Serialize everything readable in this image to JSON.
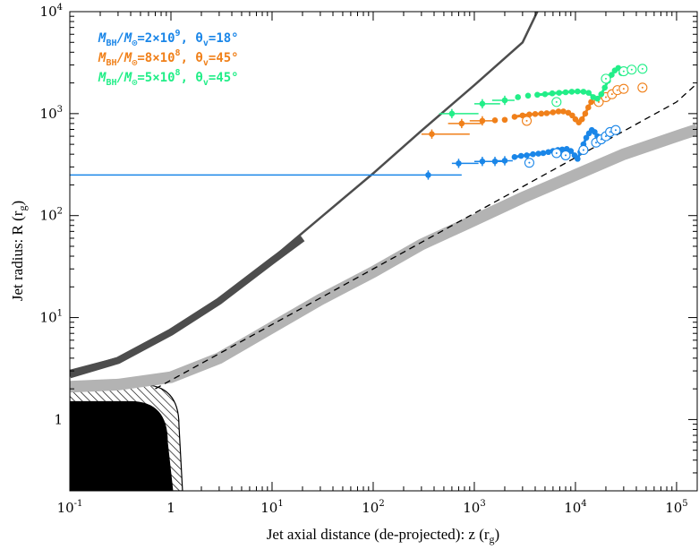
{
  "chart_data": {
    "type": "scatter",
    "x_scale": "log",
    "y_scale": "log",
    "xlim": [
      0.1,
      160000
    ],
    "ylim": [
      0.2,
      10000
    ],
    "x_ticks": [
      {
        "value": 0.1,
        "base": "10",
        "exp": "-1"
      },
      {
        "value": 1,
        "base": "1",
        "exp": ""
      },
      {
        "value": 10,
        "base": "10",
        "exp": "1"
      },
      {
        "value": 100,
        "base": "10",
        "exp": "2"
      },
      {
        "value": 1000,
        "base": "10",
        "exp": "3"
      },
      {
        "value": 10000,
        "base": "10",
        "exp": "4"
      },
      {
        "value": 100000,
        "base": "10",
        "exp": "5"
      }
    ],
    "y_ticks": [
      {
        "value": 1,
        "base": "1",
        "exp": ""
      },
      {
        "value": 10,
        "base": "10",
        "exp": "1"
      },
      {
        "value": 100,
        "base": "10",
        "exp": "2"
      },
      {
        "value": 1000,
        "base": "10",
        "exp": "3"
      },
      {
        "value": 10000,
        "base": "10",
        "exp": "4"
      }
    ],
    "xlabel": "Jet axial distance (de-projected): z (r",
    "xlabel_sub": "g",
    "xlabel_end": ")",
    "ylabel": "Jet radius: R (r",
    "ylabel_sub": "g",
    "ylabel_end": ")",
    "colors": {
      "blue": "#1a86e8",
      "orange": "#f0801a",
      "green": "#22ee88",
      "dark_curve": "#4d4d4d",
      "light_curve": "#b3b3b3"
    },
    "legend": [
      {
        "mass_lhs": "M",
        "mass_sub": "BH",
        "mass_sep": "/M",
        "mass_sun": "⊙",
        "mass_val": "=2×10",
        "mass_exp": "9",
        "angle_lhs": ", θ",
        "angle_sub": "v",
        "angle_val": "=18°",
        "color": "#1a86e8"
      },
      {
        "mass_lhs": "M",
        "mass_sub": "BH",
        "mass_sep": "/M",
        "mass_sun": "⊙",
        "mass_val": "=8×10",
        "mass_exp": "8",
        "angle_lhs": ", θ",
        "angle_sub": "v",
        "angle_val": "=45°",
        "color": "#f0801a"
      },
      {
        "mass_lhs": "M",
        "mass_sub": "BH",
        "mass_sep": "/M",
        "mass_sun": "⊙",
        "mass_val": "=5×10",
        "mass_exp": "8",
        "angle_lhs": ", θ",
        "angle_sub": "v",
        "angle_val": "=45°",
        "color": "#22ee88"
      }
    ],
    "series": [
      {
        "color": "#1a86e8",
        "points": [
          {
            "x": 350,
            "y": 250,
            "xerr": [
              0,
              750
            ]
          },
          {
            "x": 700,
            "y": 325,
            "xerr": [
              600,
              1100
            ]
          },
          {
            "x": 1200,
            "y": 340,
            "xerr": [
              1000,
              1800
            ]
          },
          {
            "x": 1600,
            "y": 340,
            "xerr": [
              1300,
              2000
            ]
          },
          {
            "x": 2000,
            "y": 345,
            "xerr": [
              1700,
              2400
            ]
          },
          {
            "x": 2500,
            "y": 375
          },
          {
            "x": 2900,
            "y": 385
          },
          {
            "x": 3300,
            "y": 390
          },
          {
            "x": 3800,
            "y": 400
          },
          {
            "x": 4300,
            "y": 405
          },
          {
            "x": 4800,
            "y": 410
          },
          {
            "x": 5400,
            "y": 420
          },
          {
            "x": 6000,
            "y": 430
          },
          {
            "x": 6700,
            "y": 440
          },
          {
            "x": 7400,
            "y": 445
          },
          {
            "x": 8200,
            "y": 450
          },
          {
            "x": 9000,
            "y": 430
          },
          {
            "x": 9800,
            "y": 390
          },
          {
            "x": 10500,
            "y": 360
          },
          {
            "x": 11200,
            "y": 420
          },
          {
            "x": 12000,
            "y": 500
          },
          {
            "x": 12800,
            "y": 580
          },
          {
            "x": 13600,
            "y": 640
          },
          {
            "x": 14500,
            "y": 690
          },
          {
            "x": 15500,
            "y": 660
          },
          {
            "x": 16500,
            "y": 600
          }
        ],
        "open_points": [
          {
            "x": 3500,
            "y": 330
          },
          {
            "x": 6500,
            "y": 410
          },
          {
            "x": 8000,
            "y": 390
          },
          {
            "x": 12000,
            "y": 440
          },
          {
            "x": 16000,
            "y": 520
          },
          {
            "x": 18000,
            "y": 560
          },
          {
            "x": 20000,
            "y": 600
          },
          {
            "x": 22000,
            "y": 660
          },
          {
            "x": 25000,
            "y": 690
          }
        ]
      },
      {
        "color": "#f0801a",
        "points": [
          {
            "x": 380,
            "y": 630,
            "xerr": [
              300,
              900
            ]
          },
          {
            "x": 750,
            "y": 800,
            "xerr": [
              550,
              1200
            ]
          },
          {
            "x": 1200,
            "y": 850,
            "xerr": [
              900,
              1700
            ]
          },
          {
            "x": 1600,
            "y": 860
          },
          {
            "x": 2000,
            "y": 870
          },
          {
            "x": 2500,
            "y": 930
          },
          {
            "x": 3000,
            "y": 960
          },
          {
            "x": 3500,
            "y": 980
          },
          {
            "x": 4000,
            "y": 990
          },
          {
            "x": 4600,
            "y": 1000
          },
          {
            "x": 5200,
            "y": 1010
          },
          {
            "x": 6000,
            "y": 1030
          },
          {
            "x": 6800,
            "y": 1050
          },
          {
            "x": 7600,
            "y": 1050
          },
          {
            "x": 8500,
            "y": 1020
          },
          {
            "x": 9300,
            "y": 960
          },
          {
            "x": 10000,
            "y": 880
          },
          {
            "x": 10800,
            "y": 820
          },
          {
            "x": 11600,
            "y": 880
          },
          {
            "x": 12500,
            "y": 1000
          },
          {
            "x": 13400,
            "y": 1150
          },
          {
            "x": 14300,
            "y": 1300
          }
        ],
        "open_points": [
          {
            "x": 3300,
            "y": 850
          },
          {
            "x": 17000,
            "y": 1300
          },
          {
            "x": 20000,
            "y": 1450
          },
          {
            "x": 23000,
            "y": 1550
          },
          {
            "x": 26000,
            "y": 1700
          },
          {
            "x": 30000,
            "y": 1750
          },
          {
            "x": 46000,
            "y": 1800
          }
        ]
      },
      {
        "color": "#22ee88",
        "points": [
          {
            "x": 600,
            "y": 1000,
            "xerr": [
              450,
              1100
            ]
          },
          {
            "x": 1200,
            "y": 1250,
            "xerr": [
              1000,
              1800
            ]
          },
          {
            "x": 2000,
            "y": 1350,
            "xerr": [
              1500,
              2500
            ]
          },
          {
            "x": 2700,
            "y": 1450
          },
          {
            "x": 3400,
            "y": 1500
          },
          {
            "x": 4200,
            "y": 1530
          },
          {
            "x": 5000,
            "y": 1550
          },
          {
            "x": 5900,
            "y": 1580
          },
          {
            "x": 6900,
            "y": 1600
          },
          {
            "x": 8000,
            "y": 1620
          },
          {
            "x": 9200,
            "y": 1640
          },
          {
            "x": 10500,
            "y": 1650
          },
          {
            "x": 12000,
            "y": 1640
          },
          {
            "x": 13500,
            "y": 1600
          },
          {
            "x": 15000,
            "y": 1450
          },
          {
            "x": 16500,
            "y": 1400
          },
          {
            "x": 18000,
            "y": 1550
          },
          {
            "x": 19500,
            "y": 1800
          },
          {
            "x": 21000,
            "y": 2100
          },
          {
            "x": 22800,
            "y": 2400
          },
          {
            "x": 24500,
            "y": 2650
          },
          {
            "x": 26500,
            "y": 2800
          },
          {
            "x": 28500,
            "y": 2500
          }
        ],
        "open_points": [
          {
            "x": 6500,
            "y": 1300
          },
          {
            "x": 20000,
            "y": 2200
          },
          {
            "x": 30000,
            "y": 2600
          },
          {
            "x": 36000,
            "y": 2700
          },
          {
            "x": 46000,
            "y": 2750
          }
        ]
      }
    ],
    "curves": [
      {
        "kind": "dark_band",
        "color": "#4d4d4d",
        "points": [
          [
            0.1,
            3.0
          ],
          [
            0.3,
            4.0
          ],
          [
            1,
            7.5
          ],
          [
            3,
            15
          ],
          [
            10,
            38
          ],
          [
            30,
            95
          ],
          [
            100,
            260
          ],
          [
            300,
            680
          ],
          [
            1000,
            1900
          ],
          [
            3000,
            5000
          ],
          [
            4200,
            10000
          ]
        ],
        "width_top": [
          0.1,
          3.25
        ],
        "width_bottom": [
          0.1,
          2.8
        ]
      },
      {
        "kind": "light_band",
        "color": "#b3b3b3",
        "points": [
          [
            0.1,
            2.1
          ],
          [
            0.3,
            2.2
          ],
          [
            1,
            2.6
          ],
          [
            3,
            4
          ],
          [
            10,
            8
          ],
          [
            30,
            15
          ],
          [
            100,
            28
          ],
          [
            300,
            52
          ],
          [
            1000,
            90
          ],
          [
            3000,
            150
          ],
          [
            10000,
            250
          ],
          [
            30000,
            400
          ],
          [
            100000,
            600
          ],
          [
            160000,
            700
          ]
        ]
      },
      {
        "kind": "dashed",
        "color": "#000000",
        "points": [
          [
            0.7,
            2.0
          ],
          [
            100000,
            1300
          ],
          [
            160000,
            1980
          ]
        ]
      }
    ],
    "excluded_region": {
      "solid_edge_x": 1,
      "solid_top_y": 1.5,
      "hatch_edge_x": 1.2,
      "hatch_top_y": 2.2
    }
  }
}
